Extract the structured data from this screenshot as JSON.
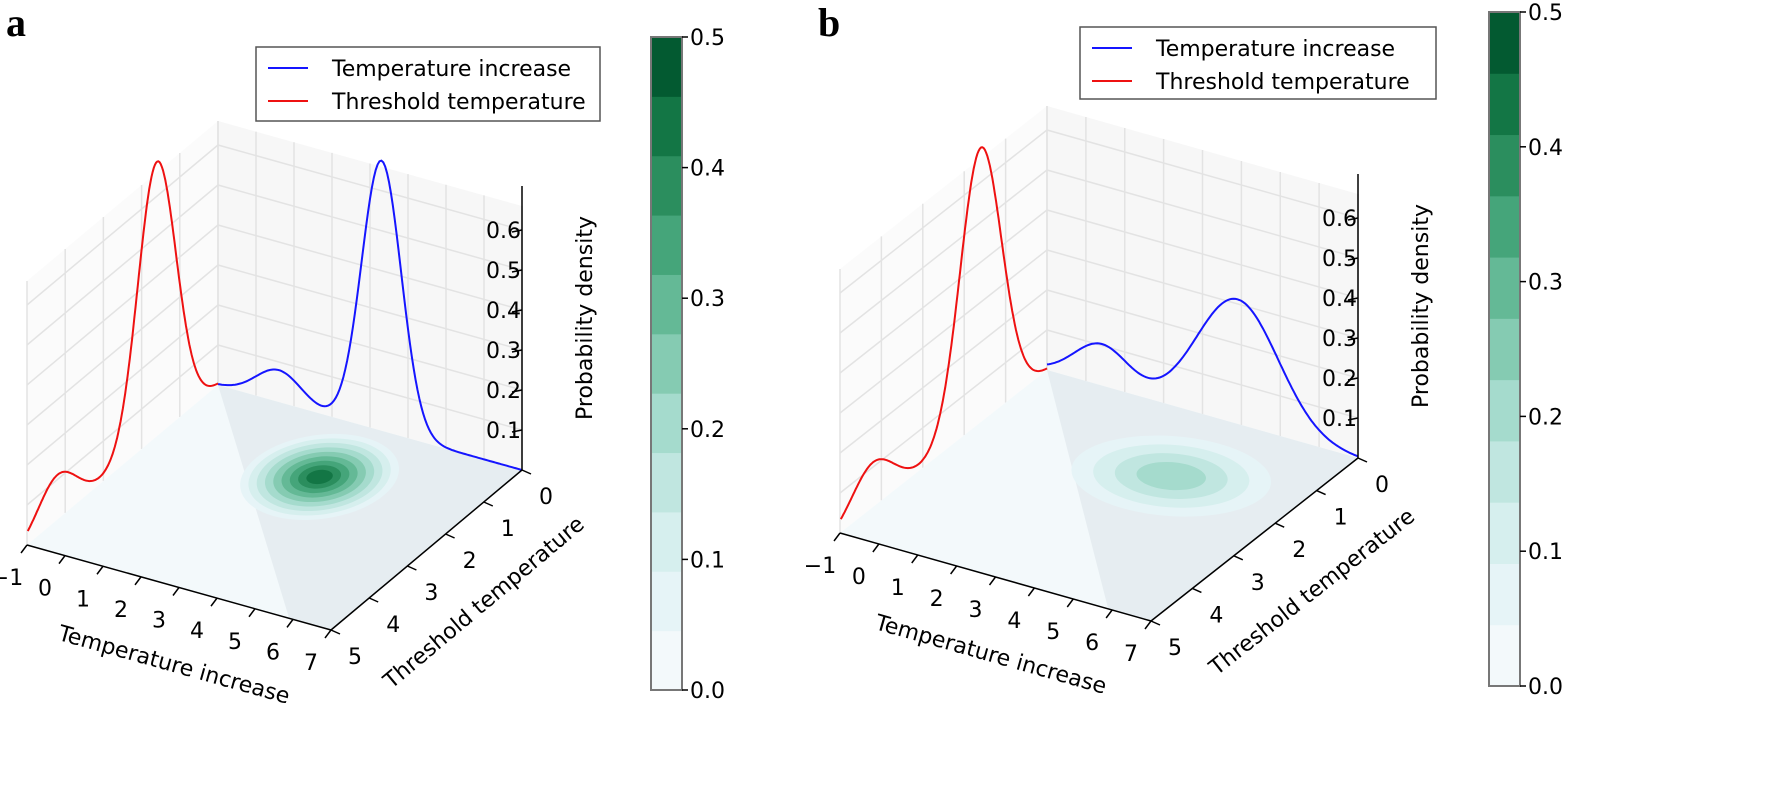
{
  "figure": {
    "panels": [
      "a",
      "b"
    ]
  },
  "chart_data": [
    {
      "panel": "a",
      "type": "surface-3d-contour",
      "title": "",
      "xlabel": "Temperature increase",
      "ylabel": "Threshold temperature",
      "zlabel": "Probability density",
      "x_ticks": [
        "−1",
        "0",
        "1",
        "2",
        "3",
        "4",
        "5",
        "6",
        "7"
      ],
      "y_ticks": [
        "0",
        "1",
        "2",
        "3",
        "4",
        "5"
      ],
      "z_ticks": [
        "0.1",
        "0.2",
        "0.3",
        "0.4",
        "0.5",
        "0.6"
      ],
      "xlim": [
        -1,
        7
      ],
      "ylim": [
        0,
        5
      ],
      "zlim": [
        0,
        0.65
      ],
      "legend": {
        "placement": "top-right",
        "entries": [
          {
            "label": "Temperature increase",
            "color": "#1515ff"
          },
          {
            "label": "Threshold temperature",
            "color": "#ee1111"
          }
        ]
      },
      "series": [
        {
          "name": "Temperature increase",
          "color": "#1515ff",
          "mixture": [
            {
              "w": 0.88,
              "mu": 3.3,
              "sigma": 0.52
            },
            {
              "w": 0.12,
              "mu": 0.6,
              "sigma": 0.6
            }
          ],
          "x": [
            -1.0,
            -0.5,
            0.0,
            0.5,
            1.0,
            1.5,
            2.0,
            2.5,
            3.0,
            3.3,
            3.5,
            4.0,
            4.5,
            5.0,
            5.5,
            6.0,
            6.5,
            7.0
          ],
          "y": [
            0.02,
            0.05,
            0.07,
            0.08,
            0.07,
            0.06,
            0.09,
            0.22,
            0.57,
            0.68,
            0.62,
            0.25,
            0.07,
            0.03,
            0.02,
            0.01,
            0.01,
            0.0
          ]
        },
        {
          "name": "Threshold temperature",
          "color": "#ee1111",
          "mixture": [
            {
              "w": 0.86,
              "mu": 1.6,
              "sigma": 0.5
            },
            {
              "w": 0.14,
              "mu": 4.2,
              "sigma": 0.5
            }
          ],
          "x": [
            0.0,
            0.5,
            1.0,
            1.5,
            1.6,
            2.0,
            2.5,
            3.0,
            3.5,
            4.0,
            4.2,
            4.5,
            5.0
          ],
          "y": [
            0.02,
            0.06,
            0.32,
            0.65,
            0.68,
            0.48,
            0.13,
            0.03,
            0.05,
            0.1,
            0.11,
            0.09,
            0.03
          ]
        }
      ],
      "contour": {
        "center_x": 3.3,
        "center_y": 1.6,
        "peak": 0.45
      },
      "colorbar": {
        "ticks": [
          "0.0",
          "0.1",
          "0.2",
          "0.3",
          "0.4",
          "0.5"
        ],
        "range": [
          0,
          0.5
        ],
        "levels": [
          "#f3f9fb",
          "#e6f4f7",
          "#d6efee",
          "#c0e6e0",
          "#a5dbcd",
          "#85cbb2",
          "#64b996",
          "#45a57a",
          "#2b8e5e",
          "#137645",
          "#035a31"
        ]
      }
    },
    {
      "panel": "b",
      "type": "surface-3d-contour",
      "title": "",
      "xlabel": "Temperature increase",
      "ylabel": "Threshold temperature",
      "zlabel": "Probability density",
      "x_ticks": [
        "−1",
        "0",
        "1",
        "2",
        "3",
        "4",
        "5",
        "6",
        "7"
      ],
      "y_ticks": [
        "0",
        "1",
        "2",
        "3",
        "4",
        "5"
      ],
      "z_ticks": [
        "0.1",
        "0.2",
        "0.3",
        "0.4",
        "0.5",
        "0.6"
      ],
      "xlim": [
        -1,
        7
      ],
      "ylim": [
        0,
        5
      ],
      "zlim": [
        0,
        0.65
      ],
      "legend": {
        "placement": "top-right",
        "entries": [
          {
            "label": "Temperature increase",
            "color": "#1515ff"
          },
          {
            "label": "Threshold temperature",
            "color": "#ee1111"
          }
        ]
      },
      "series": [
        {
          "name": "Temperature increase",
          "color": "#1515ff",
          "mixture": [
            {
              "w": 0.82,
              "mu": 3.9,
              "sigma": 1.05
            },
            {
              "w": 0.18,
              "mu": 0.4,
              "sigma": 0.7
            }
          ],
          "x": [
            -1.0,
            -0.5,
            0.0,
            0.5,
            1.0,
            1.5,
            2.0,
            2.5,
            3.0,
            3.5,
            3.9,
            4.5,
            5.0,
            5.5,
            6.0,
            6.5,
            7.0
          ],
          "y": [
            0.02,
            0.05,
            0.08,
            0.1,
            0.09,
            0.08,
            0.1,
            0.16,
            0.23,
            0.29,
            0.31,
            0.28,
            0.21,
            0.14,
            0.08,
            0.04,
            0.02
          ]
        },
        {
          "name": "Threshold temperature",
          "color": "#ee1111",
          "mixture": [
            {
              "w": 0.86,
              "mu": 1.6,
              "sigma": 0.5
            },
            {
              "w": 0.14,
              "mu": 4.2,
              "sigma": 0.5
            }
          ],
          "x": [
            0.0,
            0.5,
            1.0,
            1.5,
            1.6,
            2.0,
            2.5,
            3.0,
            3.5,
            4.0,
            4.2,
            4.5,
            5.0
          ],
          "y": [
            0.02,
            0.06,
            0.32,
            0.65,
            0.68,
            0.48,
            0.13,
            0.03,
            0.05,
            0.1,
            0.11,
            0.09,
            0.03
          ]
        }
      ],
      "contour": {
        "center_x": 3.9,
        "center_y": 1.6,
        "peak": 0.2
      },
      "colorbar": {
        "ticks": [
          "0.0",
          "0.1",
          "0.2",
          "0.3",
          "0.4",
          "0.5"
        ],
        "range": [
          0,
          0.5
        ],
        "levels": [
          "#f3f9fb",
          "#e6f4f7",
          "#d6efee",
          "#c0e6e0",
          "#a5dbcd",
          "#85cbb2",
          "#64b996",
          "#45a57a",
          "#2b8e5e",
          "#137645",
          "#035a31"
        ]
      }
    }
  ]
}
